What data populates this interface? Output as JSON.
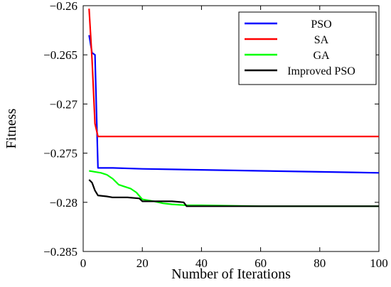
{
  "chart_data": {
    "type": "line",
    "title": "",
    "xlabel": "Number of Iterations",
    "ylabel": "Fitness",
    "xlim": [
      0,
      100
    ],
    "ylim": [
      -0.285,
      -0.26
    ],
    "xticks": [
      0,
      20,
      40,
      60,
      80,
      100
    ],
    "xtick_labels": [
      "0",
      "20",
      "40",
      "60",
      "80",
      "100"
    ],
    "yticks": [
      -0.26,
      -0.265,
      -0.27,
      -0.275,
      -0.28,
      -0.285
    ],
    "ytick_labels": [
      "−0.26",
      "−0.265",
      "−0.27",
      "−0.275",
      "−0.28",
      "−0.285"
    ],
    "grid": false,
    "legend_position": "top-right",
    "series": [
      {
        "name": "PSO",
        "color": "#0000ff",
        "x": [
          2,
          3,
          4,
          5,
          10,
          20,
          40,
          60,
          80,
          100
        ],
        "y": [
          -0.263,
          -0.2648,
          -0.265,
          -0.2765,
          -0.2765,
          -0.2766,
          -0.2767,
          -0.2768,
          -0.2769,
          -0.277
        ]
      },
      {
        "name": "SA",
        "color": "#ff0000",
        "x": [
          2,
          3,
          4,
          5,
          10,
          50,
          100
        ],
        "y": [
          -0.2603,
          -0.2655,
          -0.272,
          -0.2733,
          -0.2733,
          -0.2733,
          -0.2733
        ]
      },
      {
        "name": "GA",
        "color": "#00ff00",
        "x": [
          2,
          4,
          6,
          8,
          10,
          12,
          14,
          16,
          18,
          20,
          24,
          27,
          30,
          35,
          40,
          60,
          80,
          100
        ],
        "y": [
          -0.2768,
          -0.2769,
          -0.277,
          -0.2772,
          -0.2776,
          -0.2782,
          -0.2784,
          -0.2786,
          -0.279,
          -0.2797,
          -0.2799,
          -0.2801,
          -0.2802,
          -0.2803,
          -0.2803,
          -0.2804,
          -0.2804,
          -0.2804
        ]
      },
      {
        "name": "Improved PSO",
        "color": "#000000",
        "x": [
          2,
          3,
          4,
          5,
          8,
          10,
          15,
          19,
          20,
          25,
          30,
          34,
          35,
          40,
          60,
          80,
          100
        ],
        "y": [
          -0.2777,
          -0.278,
          -0.2788,
          -0.2793,
          -0.2794,
          -0.2795,
          -0.2795,
          -0.2796,
          -0.2799,
          -0.2799,
          -0.2799,
          -0.28,
          -0.2804,
          -0.2804,
          -0.2804,
          -0.2804,
          -0.2804
        ]
      }
    ]
  }
}
